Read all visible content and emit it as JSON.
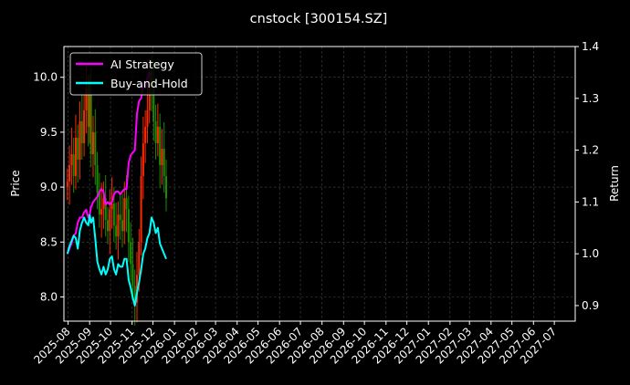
{
  "chart_data": {
    "type": "line",
    "title": "cnstock [300154.SZ]",
    "xlabel": "",
    "ylabel": "Price",
    "y2label": "Return",
    "grid": true,
    "legend_position": "top-left",
    "colors": {
      "background": "#000000",
      "ai_strategy": "#ff00ff",
      "buy_and_hold": "#00ffff",
      "candle_up": "#ff2a00",
      "candle_down": "#1e8c00"
    },
    "x_ticks": [
      "2025-08",
      "2025-09",
      "2025-10",
      "2025-11",
      "2025-12",
      "2026-01",
      "2026-02",
      "2026-03",
      "2026-04",
      "2026-05",
      "2026-06",
      "2026-07",
      "2026-08",
      "2026-09",
      "2026-10",
      "2026-11",
      "2026-12",
      "2027-01",
      "2027-02",
      "2027-03",
      "2027-04",
      "2027-05",
      "2027-06",
      "2027-07"
    ],
    "xlim": [
      "2025-07-26",
      "2027-07-31"
    ],
    "ylim": [
      7.78,
      10.28
    ],
    "y_ticks": [
      "8.0",
      "8.5",
      "9.0",
      "9.5",
      "10.0"
    ],
    "y2lim": [
      0.87,
      1.4
    ],
    "y2_ticks": [
      "0.9",
      "1.0",
      "1.1",
      "1.2",
      "1.3",
      "1.4"
    ],
    "series": [
      {
        "name": "AI Strategy",
        "axis": "right",
        "x": [
          "2025-07-31",
          "2025-08-03",
          "2025-08-06",
          "2025-08-09",
          "2025-08-12",
          "2025-08-15",
          "2025-08-18",
          "2025-08-21",
          "2025-08-24",
          "2025-08-27",
          "2025-08-30",
          "2025-09-01",
          "2025-09-03",
          "2025-09-06",
          "2025-09-09",
          "2025-09-12",
          "2025-09-15",
          "2025-09-18",
          "2025-09-21",
          "2025-09-24",
          "2025-09-27",
          "2025-09-30",
          "2025-10-03",
          "2025-10-06",
          "2025-10-09",
          "2025-10-12",
          "2025-10-15",
          "2025-10-18",
          "2025-10-21",
          "2025-10-24",
          "2025-10-27",
          "2025-10-30",
          "2025-11-02",
          "2025-11-05",
          "2025-11-08",
          "2025-11-11",
          "2025-11-14",
          "2025-11-17",
          "2025-11-20",
          "2025-11-23",
          "2025-11-26",
          "2025-11-29"
        ],
        "values": [
          1.0,
          1.01,
          1.02,
          1.035,
          1.04,
          1.06,
          1.07,
          1.07,
          1.08,
          1.085,
          1.07,
          1.075,
          1.09,
          1.1,
          1.105,
          1.11,
          1.12,
          1.125,
          1.12,
          1.095,
          1.1,
          1.095,
          1.1,
          1.115,
          1.12,
          1.12,
          1.115,
          1.12,
          1.125,
          1.125,
          1.175,
          1.19,
          1.195,
          1.2,
          1.27,
          1.295,
          1.3,
          1.33,
          1.32,
          1.34,
          1.35,
          1.345
        ]
      },
      {
        "name": "Buy-and-Hold",
        "axis": "right",
        "x": [
          "2025-07-31",
          "2025-08-03",
          "2025-08-06",
          "2025-08-09",
          "2025-08-12",
          "2025-08-15",
          "2025-08-18",
          "2025-08-21",
          "2025-08-24",
          "2025-08-27",
          "2025-08-30",
          "2025-09-01",
          "2025-09-03",
          "2025-09-06",
          "2025-09-09",
          "2025-09-12",
          "2025-09-15",
          "2025-09-18",
          "2025-09-21",
          "2025-09-24",
          "2025-09-27",
          "2025-09-30",
          "2025-10-03",
          "2025-10-06",
          "2025-10-09",
          "2025-10-12",
          "2025-10-15",
          "2025-10-18",
          "2025-10-21",
          "2025-10-24",
          "2025-10-27",
          "2025-10-30",
          "2025-11-02",
          "2025-11-05",
          "2025-11-08",
          "2025-11-11",
          "2025-11-14",
          "2025-11-17",
          "2025-11-20",
          "2025-11-23",
          "2025-11-26",
          "2025-11-29",
          "2025-12-02",
          "2025-12-05",
          "2025-12-08",
          "2025-12-11",
          "2025-12-14",
          "2025-12-17",
          "2025-12-20"
        ],
        "values": [
          1.0,
          1.015,
          1.025,
          1.035,
          1.03,
          1.01,
          1.045,
          1.06,
          1.07,
          1.06,
          1.055,
          1.075,
          1.06,
          1.07,
          1.03,
          0.985,
          0.97,
          0.96,
          0.975,
          0.96,
          0.97,
          0.99,
          0.995,
          0.97,
          0.96,
          0.98,
          0.975,
          0.975,
          0.99,
          0.99,
          0.95,
          0.935,
          0.915,
          0.9,
          0.925,
          0.945,
          0.97,
          1.0,
          1.01,
          1.03,
          1.04,
          1.07,
          1.06,
          1.04,
          1.05,
          1.02,
          1.01,
          1.0,
          0.99
        ]
      }
    ],
    "candles_approx": "daily OHLC price bars drawn behind the return lines, 2025-07-31 to 2025-12-20",
    "candle_close": [
      9.05,
      9.2,
      9.3,
      9.1,
      9.45,
      9.25,
      9.6,
      9.4,
      9.7,
      9.9,
      9.55,
      9.85,
      9.3,
      9.5,
      9.2,
      8.95,
      8.75,
      8.8,
      8.9,
      8.7,
      8.6,
      8.8,
      8.85,
      8.65,
      8.55,
      8.75,
      8.7,
      8.6,
      8.9,
      8.8,
      8.5,
      8.3,
      8.1,
      7.95,
      8.2,
      8.5,
      9.1,
      9.4,
      9.55,
      9.7,
      10.05,
      9.9,
      9.6,
      9.4,
      9.55,
      9.2,
      9.35,
      9.1,
      8.9
    ]
  }
}
